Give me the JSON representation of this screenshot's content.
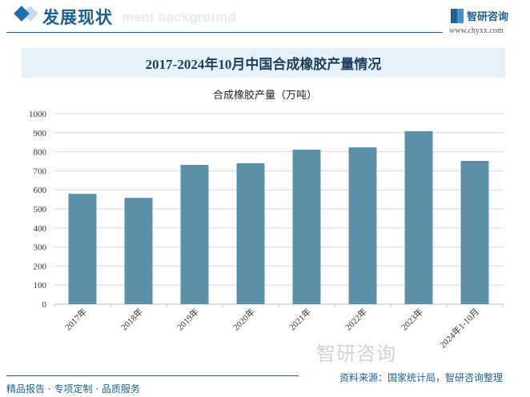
{
  "header": {
    "section_title": "发展现状",
    "section_bg_text": "ment background",
    "logo_text": "智研咨询",
    "url": "www.chyxx.com"
  },
  "footer": {
    "left": "精品报告 · 专项定制 · 品质服务",
    "source": "资料来源：国家统计局，智研咨询整理",
    "watermark": "智研咨询"
  },
  "colors": {
    "bar": "#5b90a8",
    "accent": "#1d5f8f"
  },
  "chart_data": {
    "type": "bar",
    "title": "2017-2024年10月中国合成橡胶产量情况",
    "subtitle": "合成橡胶产量（万吨）",
    "categories": [
      "2017年",
      "2018年",
      "2019年",
      "2020年",
      "2021年",
      "2022年",
      "2023年",
      "2024年1-10月"
    ],
    "values": [
      579,
      558,
      731,
      740,
      811,
      823,
      908,
      752
    ],
    "ylim": [
      0,
      1000
    ],
    "yticks": [
      0,
      100,
      200,
      300,
      400,
      500,
      600,
      700,
      800,
      900,
      1000
    ],
    "grid": true,
    "legend": "none"
  }
}
